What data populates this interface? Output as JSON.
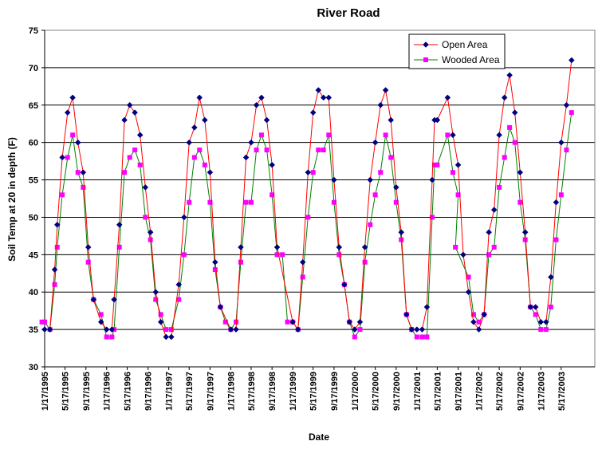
{
  "chart_data": {
    "type": "line",
    "title": "River Road",
    "xlabel": "Date",
    "ylabel": "Soil Temp at 20 in depth (F)",
    "ylim": [
      30,
      75
    ],
    "yticks": [
      30,
      35,
      40,
      45,
      50,
      55,
      60,
      65,
      70,
      75
    ],
    "xlim": [
      "1995-01-17",
      "2003-12-01"
    ],
    "xtick_labels": [
      "1/17/1995",
      "5/17/1995",
      "9/17/1995",
      "1/17/1996",
      "5/17/1996",
      "9/17/1996",
      "1/17/1997",
      "5/17/1997",
      "9/17/1997",
      "1/17/1998",
      "5/17/1998",
      "9/17/1998",
      "1/17/1999",
      "5/17/1999",
      "9/17/1999",
      "1/17/2000",
      "5/17/2000",
      "9/17/2000",
      "1/17/2001",
      "5/17/2001",
      "9/17/2001",
      "1/17/2002",
      "5/17/2002",
      "9/17/2002",
      "1/17/2003",
      "5/17/2003"
    ],
    "grid": "horizontal",
    "legend_position": "top-right",
    "series": [
      {
        "name": "Open Area",
        "color": "#ff0000",
        "marker": "diamond",
        "marker_color": "#000080",
        "points": [
          [
            "1995-01-17",
            35
          ],
          [
            "1995-02-17",
            35
          ],
          [
            "1995-03-17",
            43
          ],
          [
            "1995-04-01",
            49
          ],
          [
            "1995-05-01",
            58
          ],
          [
            "1995-06-01",
            64
          ],
          [
            "1995-07-01",
            66
          ],
          [
            "1995-08-01",
            60
          ],
          [
            "1995-09-01",
            56
          ],
          [
            "1995-10-01",
            46
          ],
          [
            "1995-11-01",
            39
          ],
          [
            "1995-12-15",
            36
          ],
          [
            "1996-01-17",
            35
          ],
          [
            "1996-02-17",
            35
          ],
          [
            "1996-03-01",
            39
          ],
          [
            "1996-04-01",
            49
          ],
          [
            "1996-05-01",
            63
          ],
          [
            "1996-06-01",
            65
          ],
          [
            "1996-07-01",
            64
          ],
          [
            "1996-08-01",
            61
          ],
          [
            "1996-09-01",
            54
          ],
          [
            "1996-10-01",
            48
          ],
          [
            "1996-11-01",
            40
          ],
          [
            "1996-12-01",
            36
          ],
          [
            "1997-01-01",
            34
          ],
          [
            "1997-02-01",
            34
          ],
          [
            "1997-03-17",
            41
          ],
          [
            "1997-04-17",
            50
          ],
          [
            "1997-05-17",
            60
          ],
          [
            "1997-06-17",
            62
          ],
          [
            "1997-07-17",
            66
          ],
          [
            "1997-08-17",
            63
          ],
          [
            "1997-09-17",
            56
          ],
          [
            "1997-10-17",
            44
          ],
          [
            "1997-11-17",
            38
          ],
          [
            "1998-01-17",
            35
          ],
          [
            "1998-02-17",
            35
          ],
          [
            "1998-03-17",
            46
          ],
          [
            "1998-04-17",
            58
          ],
          [
            "1998-05-17",
            60
          ],
          [
            "1998-06-17",
            65
          ],
          [
            "1998-07-17",
            66
          ],
          [
            "1998-08-17",
            63
          ],
          [
            "1998-09-17",
            57
          ],
          [
            "1998-10-17",
            46
          ],
          [
            "1999-01-17",
            36
          ],
          [
            "1999-02-17",
            35
          ],
          [
            "1999-03-17",
            44
          ],
          [
            "1999-04-17",
            56
          ],
          [
            "1999-05-17",
            64
          ],
          [
            "1999-06-17",
            67
          ],
          [
            "1999-07-17",
            66
          ],
          [
            "1999-08-17",
            66
          ],
          [
            "1999-09-17",
            55
          ],
          [
            "1999-10-17",
            46
          ],
          [
            "1999-11-17",
            41
          ],
          [
            "1999-12-17",
            36
          ],
          [
            "2000-01-17",
            35
          ],
          [
            "2000-02-17",
            36
          ],
          [
            "2000-03-17",
            46
          ],
          [
            "2000-04-17",
            55
          ],
          [
            "2000-05-17",
            60
          ],
          [
            "2000-06-17",
            65
          ],
          [
            "2000-07-17",
            67
          ],
          [
            "2000-08-17",
            63
          ],
          [
            "2000-09-17",
            54
          ],
          [
            "2000-10-17",
            48
          ],
          [
            "2000-11-17",
            37
          ],
          [
            "2000-12-17",
            35
          ],
          [
            "2001-01-17",
            35
          ],
          [
            "2001-02-17",
            35
          ],
          [
            "2001-03-17",
            38
          ],
          [
            "2001-04-17",
            55
          ],
          [
            "2001-05-01",
            63
          ],
          [
            "2001-05-17",
            63
          ],
          [
            "2001-07-17",
            66
          ],
          [
            "2001-08-17",
            61
          ],
          [
            "2001-09-17",
            57
          ],
          [
            "2001-10-17",
            45
          ],
          [
            "2001-11-17",
            40
          ],
          [
            "2001-12-17",
            36
          ],
          [
            "2002-01-17",
            35
          ],
          [
            "2002-02-17",
            37
          ],
          [
            "2002-03-17",
            48
          ],
          [
            "2002-04-17",
            51
          ],
          [
            "2002-05-17",
            61
          ],
          [
            "2002-06-17",
            66
          ],
          [
            "2002-07-17",
            69
          ],
          [
            "2002-08-17",
            64
          ],
          [
            "2002-09-17",
            56
          ],
          [
            "2002-10-17",
            48
          ],
          [
            "2002-11-17",
            38
          ],
          [
            "2002-12-17",
            38
          ],
          [
            "2003-01-17",
            36
          ],
          [
            "2003-02-17",
            36
          ],
          [
            "2003-03-17",
            42
          ],
          [
            "2003-04-17",
            52
          ],
          [
            "2003-05-17",
            60
          ],
          [
            "2003-06-17",
            65
          ],
          [
            "2003-07-17",
            71
          ]
        ]
      },
      {
        "name": "Wooded Area",
        "color": "#008000",
        "marker": "square",
        "marker_color": "#ff00ff",
        "points": [
          [
            "1995-01-01",
            36
          ],
          [
            "1995-01-17",
            36
          ],
          [
            "1995-02-17",
            35
          ],
          [
            "1995-03-17",
            41
          ],
          [
            "1995-04-01",
            46
          ],
          [
            "1995-05-01",
            53
          ],
          [
            "1995-06-01",
            58
          ],
          [
            "1995-07-01",
            61
          ],
          [
            "1995-08-01",
            56
          ],
          [
            "1995-09-01",
            54
          ],
          [
            "1995-10-01",
            44
          ],
          [
            "1995-11-01",
            39
          ],
          [
            "1995-12-15",
            37
          ],
          [
            "1996-01-17",
            34
          ],
          [
            "1996-02-17",
            34
          ],
          [
            "1996-03-01",
            35
          ],
          [
            "1996-04-01",
            46
          ],
          [
            "1996-05-01",
            56
          ],
          [
            "1996-06-01",
            58
          ],
          [
            "1996-07-01",
            59
          ],
          [
            "1996-08-01",
            57
          ],
          [
            "1996-09-01",
            50
          ],
          [
            "1996-10-01",
            47
          ],
          [
            "1996-11-01",
            39
          ],
          [
            "1996-12-01",
            37
          ],
          [
            "1997-01-01",
            35
          ],
          [
            "1997-02-01",
            35
          ],
          [
            "1997-03-17",
            39
          ],
          [
            "1997-04-17",
            45
          ],
          [
            "1997-05-17",
            52
          ],
          [
            "1997-06-17",
            58
          ],
          [
            "1997-07-17",
            59
          ],
          [
            "1997-08-17",
            57
          ],
          [
            "1997-09-17",
            52
          ],
          [
            "1997-10-17",
            43
          ],
          [
            "1997-11-17",
            38
          ],
          [
            "1997-12-17",
            36
          ],
          [
            "1998-01-17",
            35
          ],
          [
            "1998-02-17",
            36
          ],
          [
            "1998-03-17",
            44
          ],
          [
            "1998-04-17",
            52
          ],
          [
            "1998-05-17",
            52
          ],
          [
            "1998-06-17",
            59
          ],
          [
            "1998-07-17",
            61
          ],
          [
            "1998-08-17",
            59
          ],
          [
            "1998-09-17",
            53
          ],
          [
            "1998-10-17",
            45
          ],
          [
            "1998-11-17",
            45
          ],
          [
            "1998-12-17",
            36
          ],
          [
            "1999-01-17",
            36
          ],
          [
            "1999-02-17",
            35
          ],
          [
            "1999-03-17",
            42
          ],
          [
            "1999-04-17",
            50
          ],
          [
            "1999-05-17",
            56
          ],
          [
            "1999-06-17",
            59
          ],
          [
            "1999-07-17",
            59
          ],
          [
            "1999-08-17",
            61
          ],
          [
            "1999-09-17",
            52
          ],
          [
            "1999-10-17",
            45
          ],
          [
            "1999-11-17",
            41
          ],
          [
            "1999-12-17",
            36
          ],
          [
            "2000-01-17",
            34
          ],
          [
            "2000-02-17",
            35
          ],
          [
            "2000-03-17",
            44
          ],
          [
            "2000-04-17",
            49
          ],
          [
            "2000-05-17",
            53
          ],
          [
            "2000-06-17",
            56
          ],
          [
            "2000-07-17",
            61
          ],
          [
            "2000-08-17",
            58
          ],
          [
            "2000-09-17",
            52
          ],
          [
            "2000-10-17",
            47
          ],
          [
            "2000-11-17",
            37
          ],
          [
            "2000-12-17",
            35
          ],
          [
            "2001-01-17",
            34
          ],
          [
            "2001-02-17",
            34
          ],
          [
            "2001-03-17",
            34
          ],
          [
            "2001-04-17",
            50
          ],
          [
            "2001-05-01",
            57
          ],
          [
            "2001-05-17",
            57
          ],
          [
            "2001-07-17",
            61
          ],
          [
            "2001-08-17",
            56
          ],
          [
            "2001-09-17",
            53
          ],
          [
            "2001-09-01",
            46
          ],
          [
            "2001-11-17",
            42
          ],
          [
            "2001-12-17",
            37
          ],
          [
            "2002-01-17",
            36
          ],
          [
            "2002-02-17",
            37
          ],
          [
            "2002-03-17",
            45
          ],
          [
            "2002-04-17",
            46
          ],
          [
            "2002-05-17",
            54
          ],
          [
            "2002-06-17",
            58
          ],
          [
            "2002-07-17",
            62
          ],
          [
            "2002-08-17",
            60
          ],
          [
            "2002-09-17",
            52
          ],
          [
            "2002-10-17",
            47
          ],
          [
            "2002-11-17",
            38
          ],
          [
            "2002-12-17",
            37
          ],
          [
            "2003-01-17",
            35
          ],
          [
            "2003-02-17",
            35
          ],
          [
            "2003-03-17",
            38
          ],
          [
            "2003-04-17",
            47
          ],
          [
            "2003-05-17",
            53
          ],
          [
            "2003-06-17",
            59
          ],
          [
            "2003-07-17",
            64
          ]
        ]
      }
    ]
  }
}
